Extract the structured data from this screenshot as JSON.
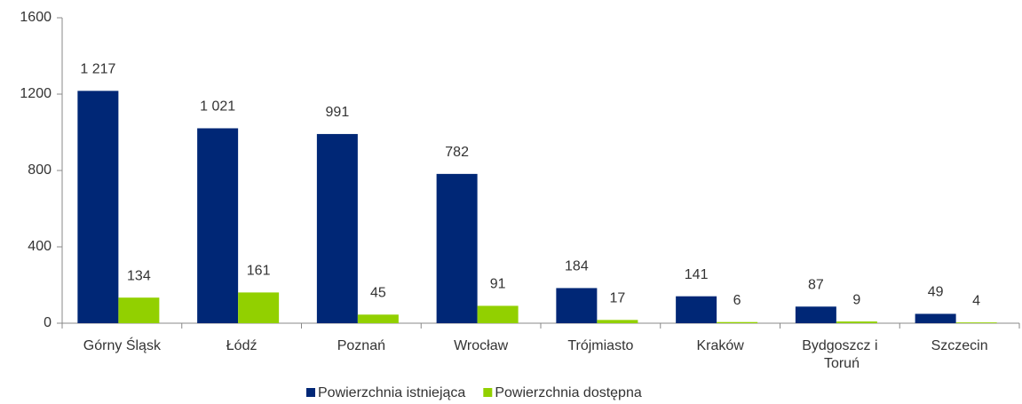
{
  "chart_data": {
    "type": "bar",
    "categories": [
      "Górny Śląsk",
      "Łódź",
      "Poznań",
      "Wrocław",
      "Trójmiasto",
      "Kraków",
      "Bydgoszcz i Toruń",
      "Szczecin"
    ],
    "series": [
      {
        "name": "Powierzchnia istniejąca",
        "color": "#002776",
        "values": [
          1217,
          1021,
          991,
          782,
          184,
          141,
          87,
          49
        ],
        "value_labels": [
          "1 217",
          "1 021",
          "991",
          "782",
          "184",
          "141",
          "87",
          "49"
        ]
      },
      {
        "name": "Powierzchnia dostępna",
        "color": "#92d000",
        "values": [
          134,
          161,
          45,
          91,
          17,
          6,
          9,
          4
        ]
      }
    ],
    "ylim": [
      0,
      1600
    ],
    "yticks": [
      0,
      400,
      800,
      1200,
      1600
    ],
    "grid": false,
    "legend": "bottom"
  }
}
